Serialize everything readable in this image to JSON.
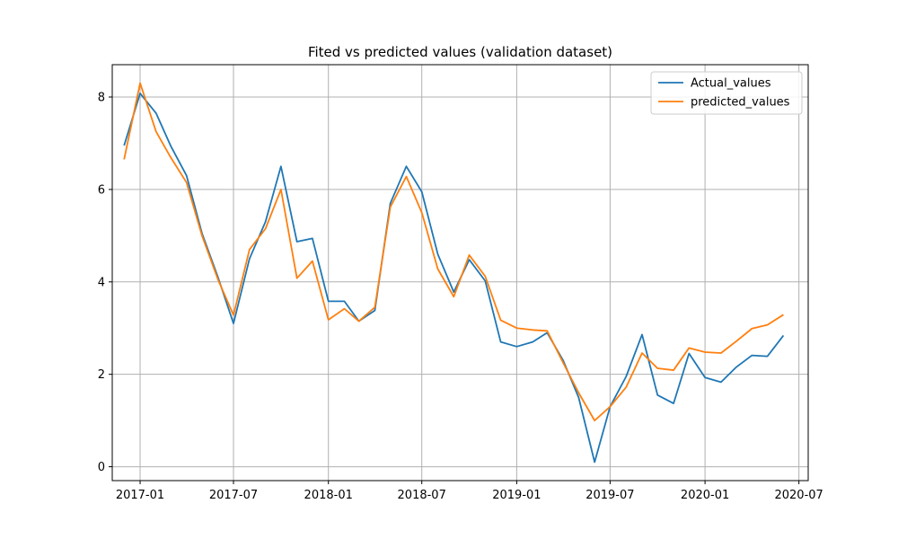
{
  "chart_data": {
    "type": "line",
    "title": "Fited vs predicted values (validation dataset)",
    "xlabel": "",
    "ylabel": "",
    "x_tick_labels": [
      "2017-01",
      "2017-07",
      "2018-01",
      "2018-07",
      "2019-01",
      "2019-07",
      "2020-01",
      "2020-07"
    ],
    "y_ticks": [
      0,
      2,
      4,
      6,
      8
    ],
    "xlim": [
      "2016-11-08",
      "2020-07-19"
    ],
    "ylim": [
      -0.3,
      8.7
    ],
    "grid": true,
    "legend_position": "top-right",
    "x": [
      "2016-12-01",
      "2017-01-01",
      "2017-02-01",
      "2017-03-01",
      "2017-04-01",
      "2017-05-01",
      "2017-06-01",
      "2017-07-01",
      "2017-08-01",
      "2017-09-01",
      "2017-10-01",
      "2017-11-01",
      "2017-12-01",
      "2018-01-01",
      "2018-02-01",
      "2018-03-01",
      "2018-04-01",
      "2018-05-01",
      "2018-06-01",
      "2018-07-01",
      "2018-08-01",
      "2018-09-01",
      "2018-10-01",
      "2018-11-01",
      "2018-12-01",
      "2019-01-01",
      "2019-02-01",
      "2019-03-01",
      "2019-04-01",
      "2019-05-01",
      "2019-06-01",
      "2019-07-01",
      "2019-08-01",
      "2019-09-01",
      "2019-10-01",
      "2019-11-01",
      "2019-12-01",
      "2020-01-01",
      "2020-02-01",
      "2020-03-01",
      "2020-04-01",
      "2020-05-01",
      "2020-06-01"
    ],
    "series": [
      {
        "name": "Actual_values",
        "color": "#1f77b4",
        "values": [
          6.95,
          8.08,
          7.65,
          6.95,
          6.3,
          5.05,
          4.1,
          3.1,
          4.5,
          5.3,
          6.5,
          4.87,
          4.94,
          3.58,
          3.58,
          3.15,
          3.38,
          5.7,
          6.5,
          5.95,
          4.6,
          3.78,
          4.48,
          4.02,
          2.7,
          2.6,
          2.7,
          2.9,
          2.3,
          1.5,
          0.1,
          1.3,
          1.95,
          2.86,
          1.55,
          1.37,
          2.45,
          1.93,
          1.83,
          2.15,
          2.41,
          2.39,
          2.84
        ]
      },
      {
        "name": "predicted_values",
        "color": "#ff7f0e",
        "values": [
          6.65,
          8.3,
          7.25,
          6.7,
          6.15,
          5.0,
          4.05,
          3.28,
          4.7,
          5.15,
          6.0,
          4.08,
          4.45,
          3.18,
          3.42,
          3.15,
          3.45,
          5.62,
          6.28,
          5.5,
          4.28,
          3.68,
          4.58,
          4.12,
          3.17,
          3.0,
          2.96,
          2.94,
          2.25,
          1.6,
          1.0,
          1.3,
          1.72,
          2.46,
          2.13,
          2.09,
          2.57,
          2.48,
          2.46,
          2.71,
          2.99,
          3.07,
          3.29
        ]
      }
    ]
  }
}
